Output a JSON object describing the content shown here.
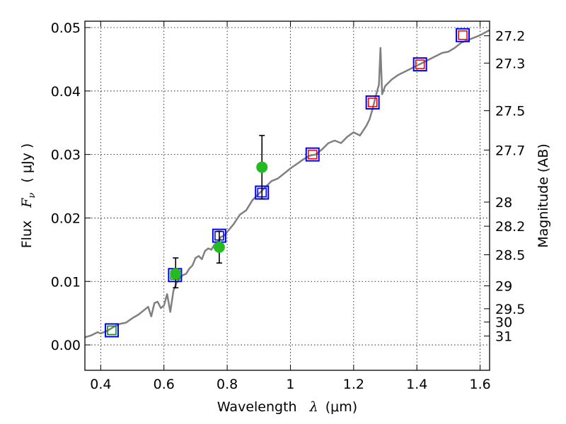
{
  "chart_data": {
    "type": "line",
    "xlabel": {
      "prefix": "Wavelength",
      "symbol": "λ",
      "unit": "(μm)"
    },
    "ylabel": {
      "prefix": "Flux",
      "symbol": "F",
      "subscript": "ν",
      "unit": "( μJy )"
    },
    "y2label": "Magnitude (AB)",
    "xlim": [
      0.35,
      1.63
    ],
    "ylim": [
      -0.004,
      0.051
    ],
    "x_ticks": [
      0.4,
      0.6,
      0.8,
      1.0,
      1.2,
      1.4,
      1.6
    ],
    "x_tick_labels": [
      "0.4",
      "0.6",
      "0.8",
      "1",
      "1.2",
      "1.4",
      "1.6"
    ],
    "y_ticks": [
      0.0,
      0.01,
      0.02,
      0.03,
      0.04,
      0.05
    ],
    "y_tick_labels": [
      "0.00",
      "0.01",
      "0.02",
      "0.03",
      "0.04",
      "0.05"
    ],
    "y2_ticks": [
      {
        "label": "27.2",
        "flux": 0.0487
      },
      {
        "label": "27.3",
        "flux": 0.0444
      },
      {
        "label": "27.5",
        "flux": 0.0369
      },
      {
        "label": "27.7",
        "flux": 0.0307
      },
      {
        "label": "28",
        "flux": 0.0225
      },
      {
        "label": "28.2",
        "flux": 0.0187
      },
      {
        "label": "28.5",
        "flux": 0.0142
      },
      {
        "label": "29",
        "flux": 0.0093
      },
      {
        "label": "29.5",
        "flux": 0.0057
      },
      {
        "label": "30",
        "flux": 0.0036
      },
      {
        "label": "31",
        "flux": 0.0014
      }
    ],
    "grid": true,
    "colors": {
      "spectrum": "#808080",
      "model_blue": "#0000ff",
      "model_green": "#009900",
      "model_red": "#ff0000",
      "observed": "#22bb22",
      "errorbar": "#000000"
    },
    "series": [
      {
        "type": "line",
        "x": [
          0.35,
          0.37,
          0.39,
          0.4,
          0.42,
          0.44,
          0.46,
          0.48,
          0.5,
          0.52,
          0.54,
          0.55,
          0.56,
          0.57,
          0.58,
          0.59,
          0.6,
          0.61,
          0.62,
          0.63,
          0.64,
          0.65,
          0.66,
          0.67,
          0.68,
          0.69,
          0.7,
          0.71,
          0.72,
          0.73,
          0.74,
          0.75,
          0.76,
          0.77,
          0.78,
          0.79,
          0.8,
          0.82,
          0.84,
          0.86,
          0.88,
          0.9,
          0.92,
          0.94,
          0.96,
          0.98,
          1.0,
          1.02,
          1.04,
          1.06,
          1.08,
          1.1,
          1.12,
          1.14,
          1.16,
          1.18,
          1.2,
          1.22,
          1.24,
          1.25,
          1.26,
          1.27,
          1.28,
          1.285,
          1.29,
          1.3,
          1.32,
          1.34,
          1.36,
          1.38,
          1.4,
          1.42,
          1.44,
          1.46,
          1.48,
          1.5,
          1.52,
          1.54,
          1.56,
          1.58,
          1.6,
          1.63
        ],
        "y": [
          0.0012,
          0.0015,
          0.002,
          0.0018,
          0.0022,
          0.0028,
          0.0033,
          0.0035,
          0.0042,
          0.0048,
          0.0056,
          0.006,
          0.0045,
          0.0066,
          0.0068,
          0.0058,
          0.0062,
          0.008,
          0.0052,
          0.0085,
          0.0098,
          0.0105,
          0.011,
          0.0112,
          0.012,
          0.0125,
          0.0137,
          0.014,
          0.0135,
          0.0148,
          0.0152,
          0.015,
          0.0158,
          0.0162,
          0.017,
          0.0172,
          0.0178,
          0.019,
          0.0205,
          0.0212,
          0.0228,
          0.0238,
          0.0248,
          0.0258,
          0.0262,
          0.027,
          0.0278,
          0.0285,
          0.0292,
          0.0298,
          0.03,
          0.0308,
          0.0318,
          0.0322,
          0.0318,
          0.0328,
          0.0335,
          0.033,
          0.0345,
          0.0355,
          0.0372,
          0.0392,
          0.041,
          0.0468,
          0.0395,
          0.0408,
          0.0418,
          0.0425,
          0.043,
          0.0435,
          0.044,
          0.0445,
          0.045,
          0.0455,
          0.046,
          0.0462,
          0.0468,
          0.0476,
          0.048,
          0.0484,
          0.0488,
          0.0496
        ]
      },
      {
        "type": "square-markers",
        "x": [
          0.435,
          0.635,
          0.775,
          0.91,
          1.07,
          1.26,
          1.41,
          1.545
        ],
        "y": [
          0.0023,
          0.011,
          0.0172,
          0.024,
          0.03,
          0.0382,
          0.0442,
          0.0488
        ],
        "inner_colors": [
          "#009900",
          "#009900",
          "#0000ff",
          "#0000ff",
          "#ff0000",
          "#ff0000",
          "#ff0000",
          "#ff0000"
        ]
      },
      {
        "type": "points-with-errorbars",
        "x": [
          0.637,
          0.775,
          0.91
        ],
        "y": [
          0.0112,
          0.0154,
          0.028
        ],
        "yerr_low": [
          0.0022,
          0.0025,
          0.005
        ],
        "yerr_high": [
          0.0025,
          0.0025,
          0.005
        ]
      }
    ]
  }
}
